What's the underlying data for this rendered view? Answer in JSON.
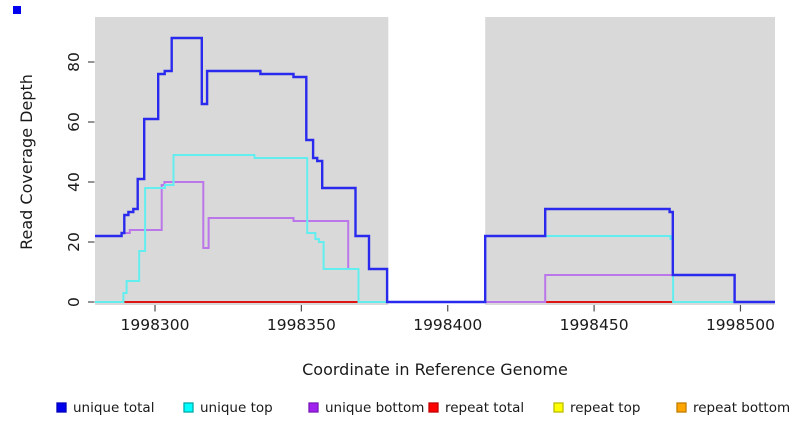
{
  "decoration": {
    "corner_marker_color": "#0000EE"
  },
  "chart_data": {
    "type": "line",
    "style": "step",
    "title": "",
    "xlabel": "Coordinate in Reference Genome",
    "ylabel": "Read Coverage Depth",
    "xlim": [
      1998279.5,
      1998511.8
    ],
    "ylim": [
      0,
      95
    ],
    "x_ticks": [
      1998300,
      1998350,
      1998400,
      1998450,
      1998500
    ],
    "y_ticks": [
      0,
      20,
      40,
      60,
      80
    ],
    "grid": false,
    "panel_background": "#D9D9D9",
    "masked_region": {
      "x_start": 1998379.7,
      "x_end": 1998412.8,
      "color": "#FFFFFF"
    },
    "series": [
      {
        "name": "unique total",
        "color": "#2A2AEF",
        "width": 2.4,
        "steps": [
          [
            1998279.5,
            22
          ],
          [
            1998288.6,
            23
          ],
          [
            1998289.5,
            29
          ],
          [
            1998290.9,
            30
          ],
          [
            1998292.6,
            31
          ],
          [
            1998294.1,
            41
          ],
          [
            1998296.3,
            61
          ],
          [
            1998301.1,
            76
          ],
          [
            1998303.3,
            77
          ],
          [
            1998305.7,
            88
          ],
          [
            1998316.0,
            66
          ],
          [
            1998317.8,
            77
          ],
          [
            1998336.0,
            76
          ],
          [
            1998347.3,
            75
          ],
          [
            1998351.7,
            54
          ],
          [
            1998354.0,
            48
          ],
          [
            1998355.4,
            47
          ],
          [
            1998357.1,
            38
          ],
          [
            1998368.5,
            22
          ],
          [
            1998373.1,
            11
          ],
          [
            1998379.3,
            0
          ],
          [
            1998412.8,
            22
          ],
          [
            1998433.3,
            31
          ],
          [
            1998475.8,
            30
          ],
          [
            1998476.9,
            9
          ],
          [
            1998498.0,
            0
          ]
        ]
      },
      {
        "name": "unique top",
        "color": "#62EEEE",
        "width": 2,
        "steps": [
          [
            1998279.5,
            0
          ],
          [
            1998289.2,
            3
          ],
          [
            1998290.3,
            7
          ],
          [
            1998294.6,
            17
          ],
          [
            1998296.6,
            38
          ],
          [
            1998303.4,
            39
          ],
          [
            1998306.3,
            49
          ],
          [
            1998334.0,
            48
          ],
          [
            1998352.0,
            23
          ],
          [
            1998354.8,
            21
          ],
          [
            1998356.0,
            20
          ],
          [
            1998357.6,
            11
          ],
          [
            1998369.5,
            0
          ],
          [
            1998412.8,
            22
          ],
          [
            1998476.1,
            21
          ],
          [
            1998477.0,
            0
          ]
        ]
      },
      {
        "name": "unique bottom",
        "color": "#BB76E9",
        "width": 2,
        "steps": [
          [
            1998279.5,
            22
          ],
          [
            1998288.6,
            23
          ],
          [
            1998291.4,
            24
          ],
          [
            1998302.3,
            39
          ],
          [
            1998303.2,
            40
          ],
          [
            1998316.5,
            18
          ],
          [
            1998318.3,
            28
          ],
          [
            1998347.3,
            27
          ],
          [
            1998366.0,
            11
          ],
          [
            1998369.5,
            0
          ],
          [
            1998433.3,
            9
          ],
          [
            1998498.0,
            0
          ]
        ]
      },
      {
        "name": "repeat total",
        "color": "#DC1414",
        "width": 2,
        "steps": [
          [
            1998279.5,
            0
          ]
        ]
      },
      {
        "name": "repeat top",
        "color": "#F2F20C",
        "width": 2,
        "steps": [
          [
            1998279.5,
            0
          ]
        ]
      },
      {
        "name": "repeat bottom",
        "color": "#FFA513",
        "width": 2,
        "steps": [
          [
            1998279.5,
            0
          ]
        ]
      }
    ]
  },
  "legend": {
    "entries": [
      {
        "label": "unique total",
        "fill": "#0000EE",
        "border": "#0000B8"
      },
      {
        "label": "unique top",
        "fill": "#00FFFF",
        "border": "#00A9A9"
      },
      {
        "label": "unique bottom",
        "fill": "#A020F0",
        "border": "#7A18B8"
      },
      {
        "label": "repeat total",
        "fill": "#FF0000",
        "border": "#C00000"
      },
      {
        "label": "repeat top",
        "fill": "#FFFF00",
        "border": "#BDBD00"
      },
      {
        "label": "repeat bottom",
        "fill": "#FFA500",
        "border": "#C07D00"
      }
    ]
  }
}
